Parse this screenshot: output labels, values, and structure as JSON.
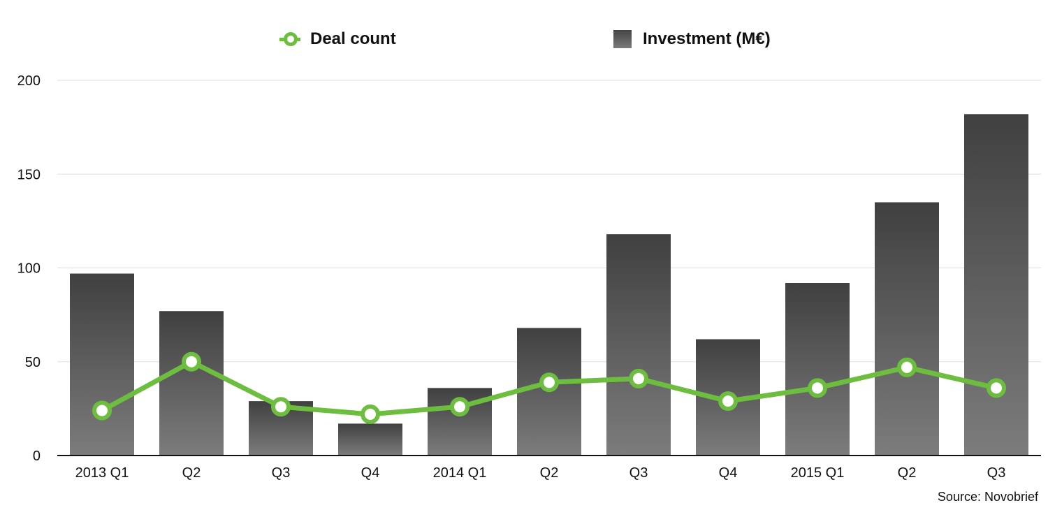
{
  "legend": {
    "line_label": "Deal count",
    "bar_label": "Investment (M€)"
  },
  "source": "Source: Novobrief",
  "chart_data": {
    "type": "bar",
    "categories": [
      "2013 Q1",
      "Q2",
      "Q3",
      "Q4",
      "2014 Q1",
      "Q2",
      "Q3",
      "Q4",
      "2015 Q1",
      "Q2",
      "Q3"
    ],
    "series": [
      {
        "name": "Investment (M€)",
        "type": "bar",
        "color": "#555555",
        "values": [
          97,
          77,
          29,
          17,
          36,
          68,
          118,
          62,
          92,
          135,
          182
        ]
      },
      {
        "name": "Deal count",
        "type": "line",
        "color": "#6dbe3f",
        "values": [
          24,
          50,
          26,
          22,
          26,
          39,
          41,
          29,
          36,
          47,
          36
        ]
      }
    ],
    "ylim": [
      0,
      200
    ],
    "yticks": [
      0,
      50,
      100,
      150,
      200
    ],
    "grid": true,
    "legend_position": "top"
  }
}
